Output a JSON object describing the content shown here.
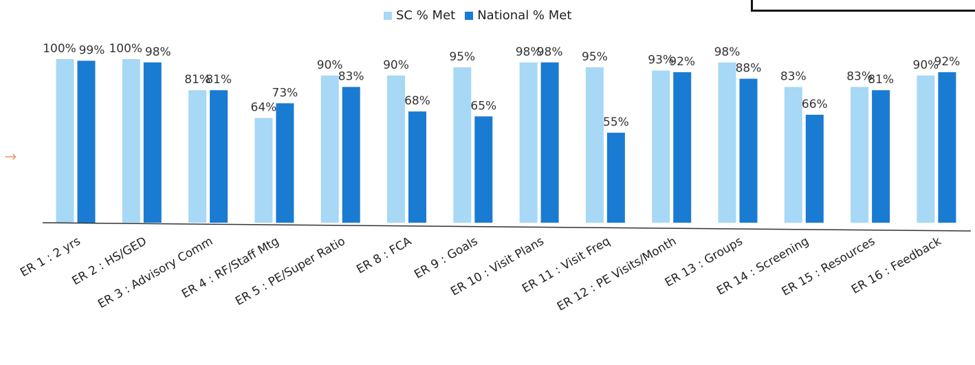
{
  "colors": {
    "sc": "#a7d8f5",
    "national": "#1a7bd2",
    "sc_dark": "#7ec2ec",
    "axis": "#333333"
  },
  "marker": {
    "glyph": "→"
  },
  "chart_data": {
    "type": "bar",
    "title": "",
    "xlabel": "",
    "ylabel": "",
    "ylim": [
      0,
      100
    ],
    "grid": false,
    "legend_position": "top",
    "categories": [
      "ER 1 : 2 yrs",
      "ER 2 : HS/GED",
      "ER 3 : Advisory Comm",
      "ER 4 : RF/Staff Mtg",
      "ER 5 : PE/Super Ratio",
      "ER 8 : FCA",
      "ER 9 : Goals",
      "ER 10 : Visit Plans",
      "ER 11 : Visit Freq",
      "ER 12 : PE Visits/Month",
      "ER 13 : Groups",
      "ER 14 : Screening",
      "ER 15 : Resources",
      "ER 16 : Feedback"
    ],
    "series": [
      {
        "name": "SC % Met",
        "values": [
          100,
          100,
          81,
          64,
          90,
          90,
          95,
          98,
          95,
          93,
          98,
          83,
          83,
          90
        ],
        "labels": [
          "100%",
          "100%",
          "81%",
          "64%",
          "90%",
          "90%",
          "95%",
          "98%",
          "95%",
          "93%",
          "98%",
          "83%",
          "83%",
          "90%"
        ]
      },
      {
        "name": "National % Met",
        "values": [
          99,
          98,
          81,
          73,
          83,
          68,
          65,
          98,
          55,
          92,
          88,
          66,
          81,
          92
        ],
        "labels": [
          "99%",
          "98%",
          "81%",
          "73%",
          "83%",
          "68%",
          "65%",
          "98%",
          "55%",
          "92%",
          "88%",
          "66%",
          "81%",
          "92%"
        ]
      }
    ]
  }
}
